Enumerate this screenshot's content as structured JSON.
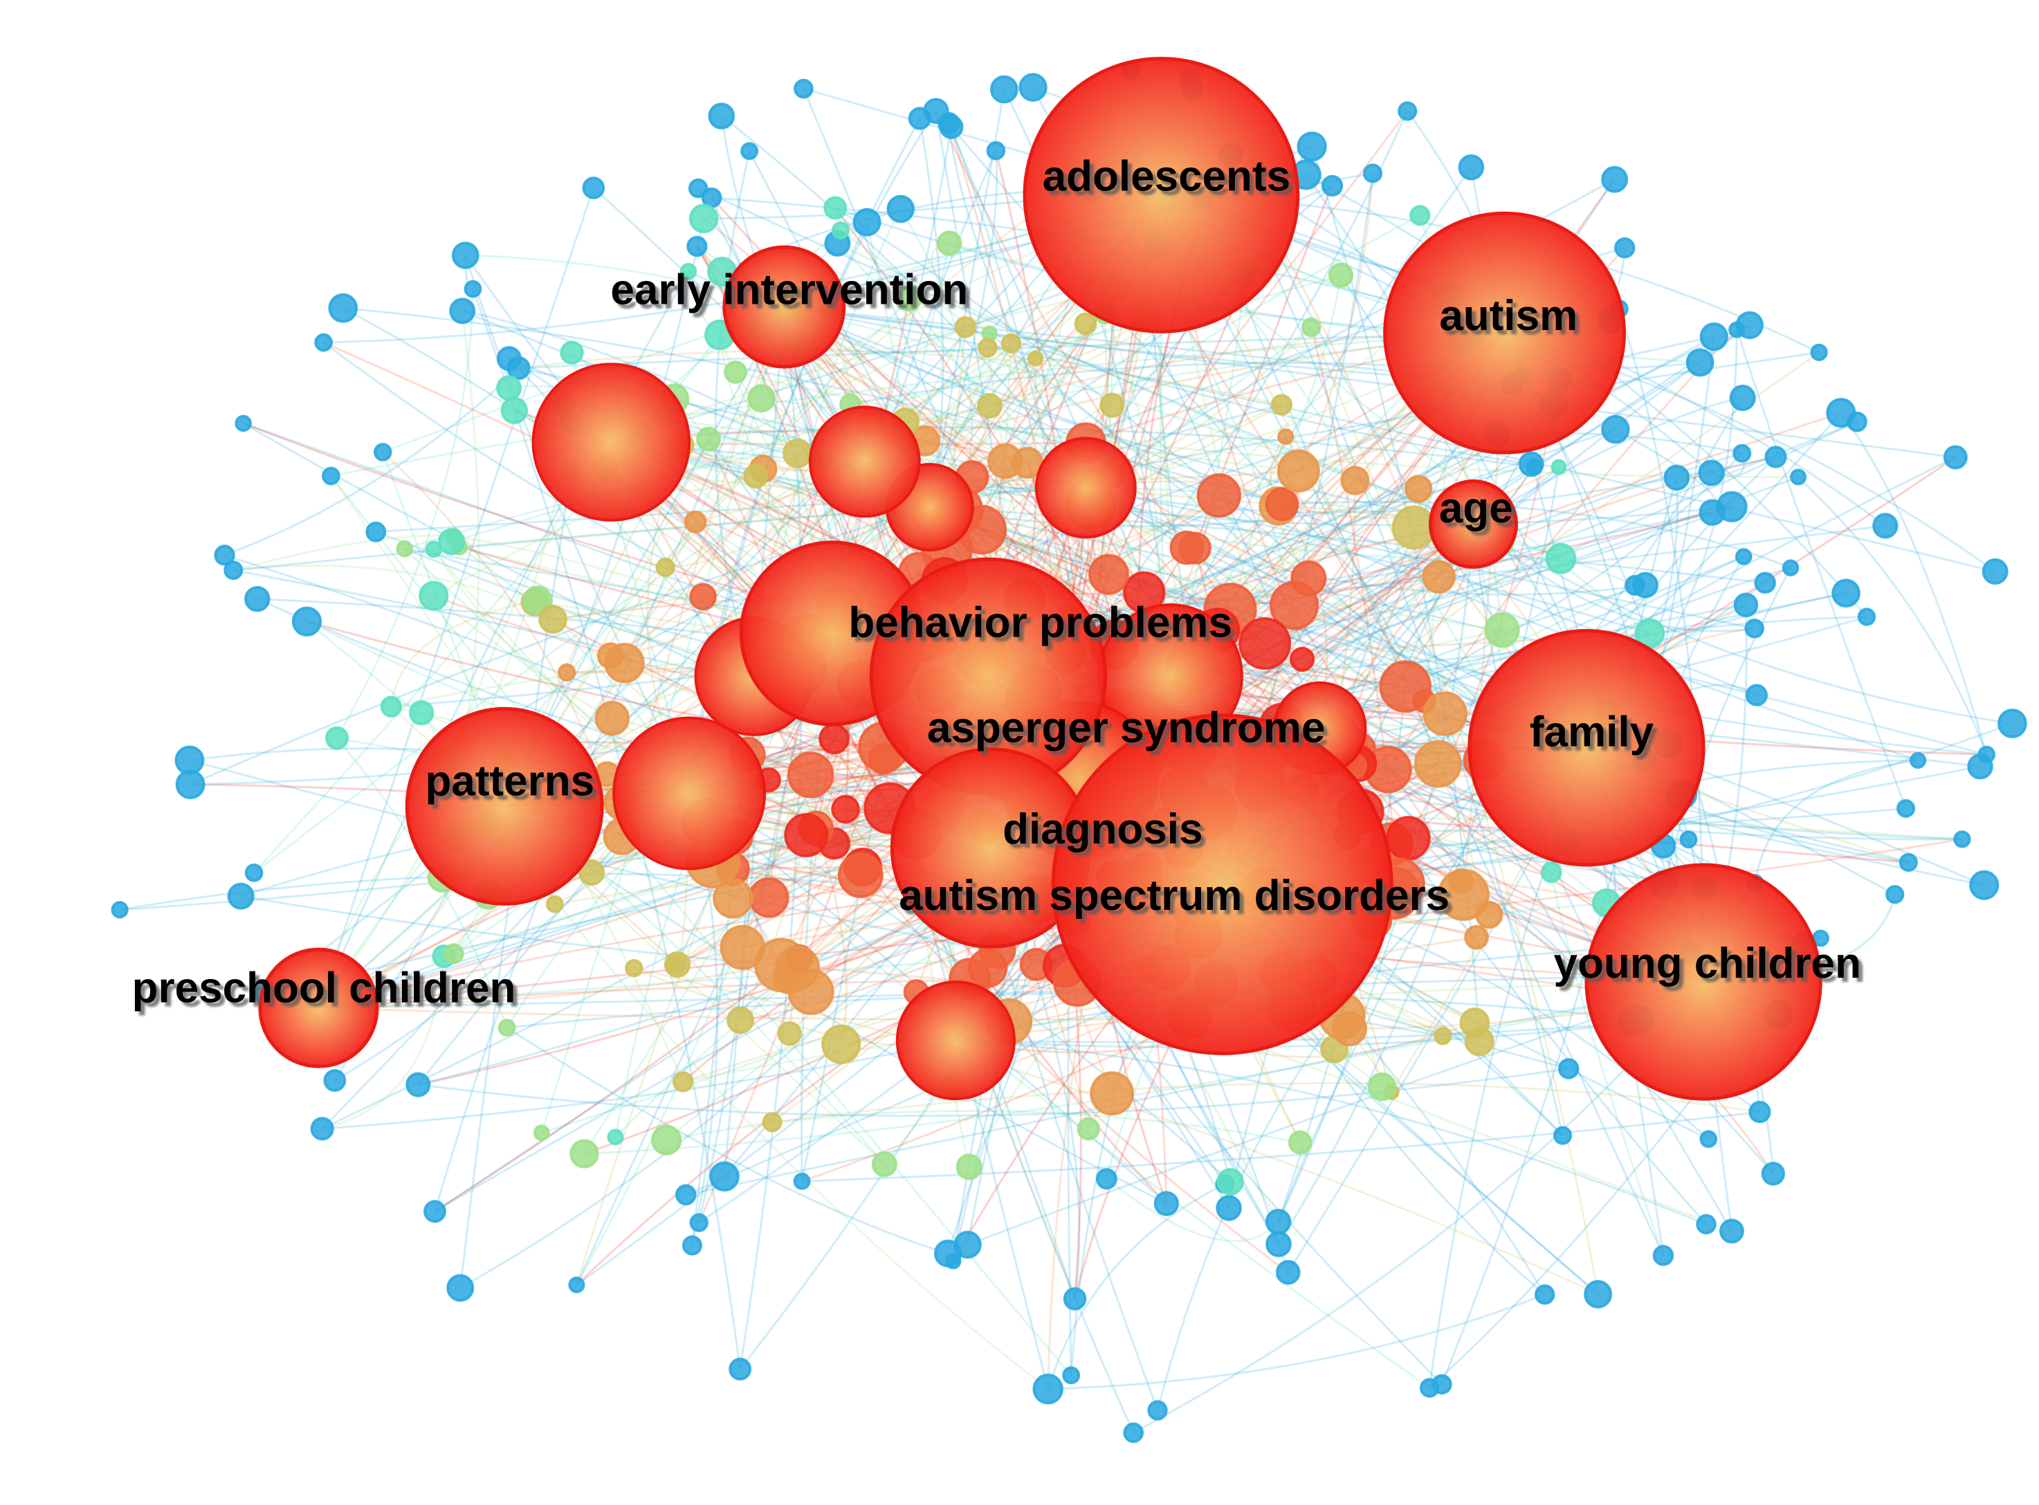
{
  "nodes": [
    {
      "label": "adolescents"
    },
    {
      "label": "autism"
    },
    {
      "label": "early intervention"
    },
    {
      "label": "age"
    },
    {
      "label": "behavior problems"
    },
    {
      "label": "asperger syndrome"
    },
    {
      "label": "family"
    },
    {
      "label": "patterns"
    },
    {
      "label": "diagnosis"
    },
    {
      "label": "autism spectrum disorders"
    },
    {
      "label": "young children"
    },
    {
      "label": "preschool children"
    }
  ]
}
